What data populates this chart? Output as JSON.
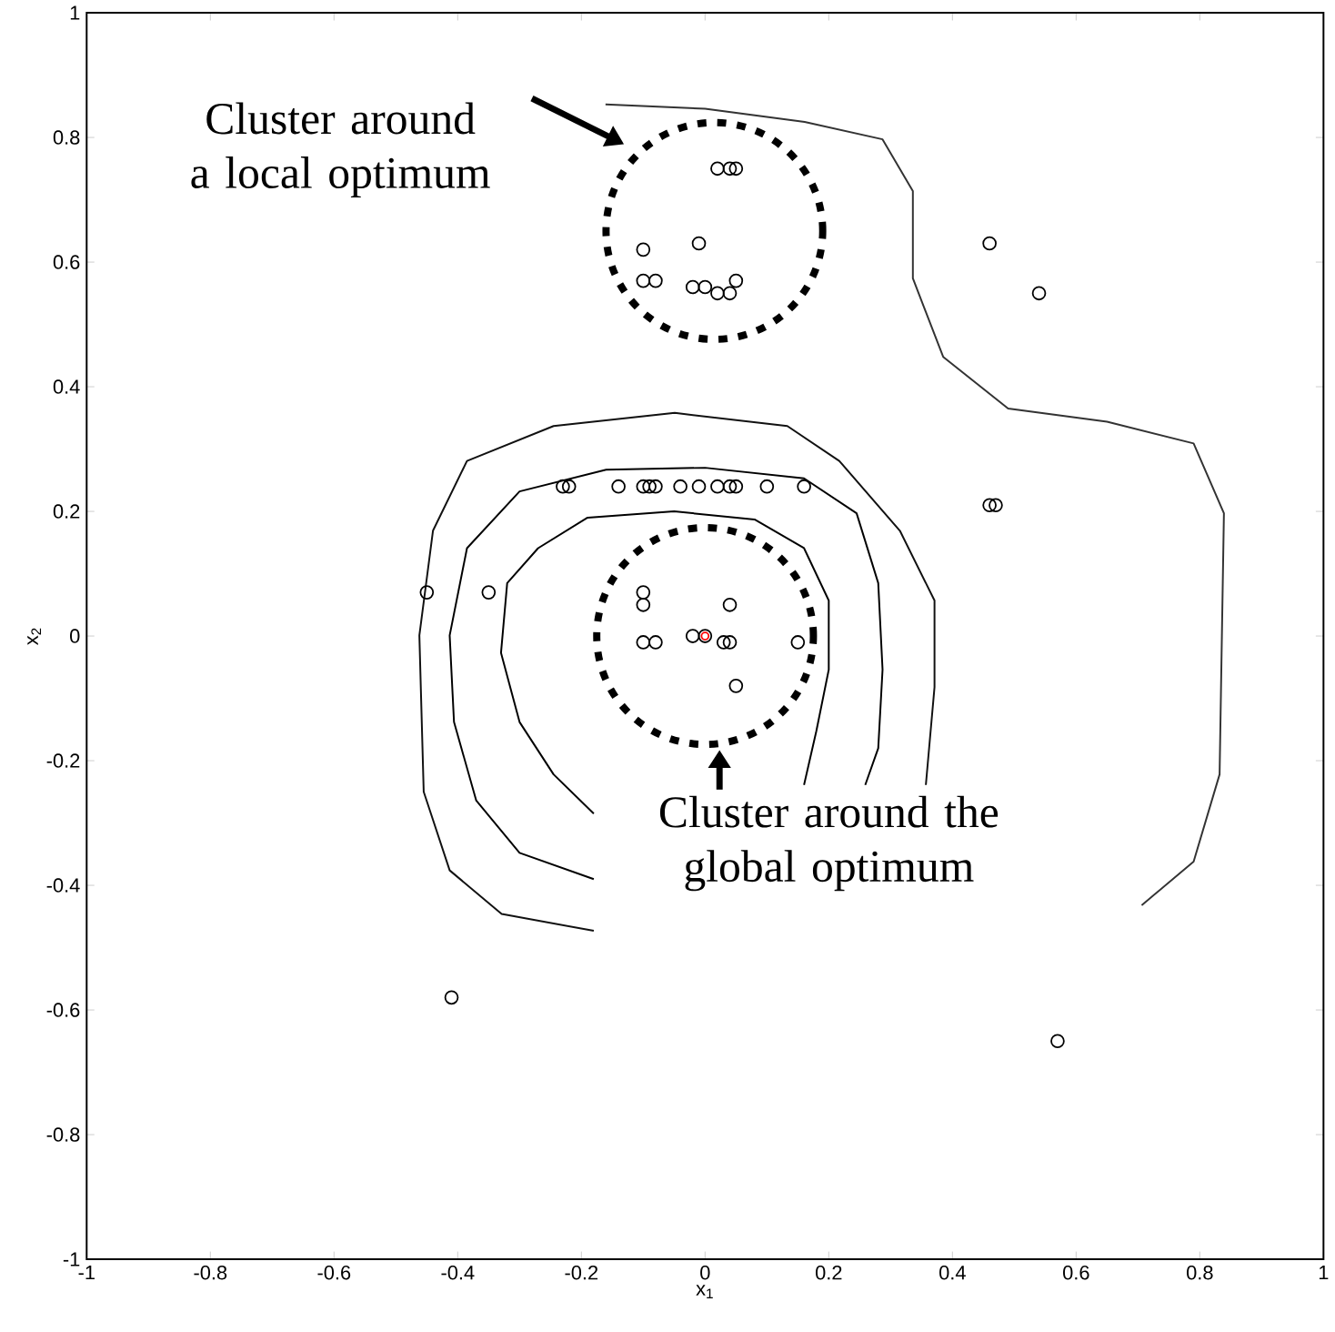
{
  "chart_data": {
    "type": "scatter",
    "xlabel": "x$_{1}$",
    "ylabel": "x$_{2}$",
    "xlim": [
      -1,
      1
    ],
    "ylim": [
      -1,
      1
    ],
    "xticks": [
      -1,
      -0.8,
      -0.6,
      -0.4,
      -0.2,
      0,
      0.2,
      0.4,
      0.6,
      0.8,
      1
    ],
    "yticks": [
      -1,
      -0.8,
      -0.6,
      -0.4,
      -0.2,
      0,
      0.2,
      0.4,
      0.6,
      0.8,
      1
    ],
    "marker": "circle",
    "series": [
      {
        "type": "line",
        "marker": "none",
        "color": "#000000",
        "x": [
          -0.18,
          -0.245,
          -0.3,
          -0.33,
          -0.32,
          -0.27,
          -0.19,
          -0.05,
          0.08,
          0.16,
          0.2,
          0.2,
          0.18,
          0.16
        ],
        "values": [
          -0.285,
          -0.222,
          -0.138,
          -0.027,
          0.085,
          0.141,
          0.19,
          0.2,
          0.187,
          0.141,
          0.057,
          -0.054,
          -0.152,
          -0.239
        ]
      },
      {
        "type": "line",
        "marker": "none",
        "color": "#000000",
        "x": [
          -0.18,
          -0.3,
          -0.37,
          -0.406,
          -0.413,
          -0.385,
          -0.3,
          -0.16,
          0,
          0.16,
          0.245,
          0.28,
          0.287,
          0.28,
          0.259
        ],
        "values": [
          -0.39,
          -0.348,
          -0.264,
          -0.138,
          0.001,
          0.141,
          0.232,
          0.267,
          0.27,
          0.253,
          0.197,
          0.085,
          -0.054,
          -0.18,
          -0.239
        ]
      },
      {
        "type": "line",
        "marker": "none",
        "color": "#111111",
        "x": [
          -0.18,
          -0.329,
          -0.413,
          -0.455,
          -0.462,
          -0.44,
          -0.385,
          -0.245,
          -0.049,
          0.133,
          0.217,
          0.315,
          0.371,
          0.371,
          0.357
        ],
        "values": [
          -0.473,
          -0.446,
          -0.376,
          -0.25,
          0.001,
          0.169,
          0.281,
          0.337,
          0.358,
          0.337,
          0.281,
          0.169,
          0.057,
          -0.082,
          -0.239
        ]
      },
      {
        "type": "line",
        "marker": "none",
        "color": "#333333",
        "x": [
          0.706,
          0.79,
          0.832,
          0.839,
          0.79,
          0.65,
          0.49,
          0.385,
          0.336,
          0.336,
          0.287,
          0.161,
          0,
          -0.161
        ],
        "values": [
          -0.432,
          -0.362,
          -0.222,
          0.197,
          0.309,
          0.344,
          0.365,
          0.448,
          0.574,
          0.714,
          0.797,
          0.825,
          0.846,
          0.853
        ]
      },
      {
        "color": "#000000",
        "x": [
          0.02,
          0.04,
          0.05,
          -0.1,
          -0.01,
          -0.1,
          -0.08,
          -0.02,
          0.0,
          0.02,
          0.04,
          0.05,
          0.46,
          0.54,
          -0.23,
          -0.22,
          -0.14,
          -0.1,
          -0.09,
          -0.08,
          -0.04,
          -0.01,
          0.02,
          0.04,
          0.05,
          0.1,
          0.16,
          0.46,
          0.47,
          -0.45,
          -0.35,
          -0.1,
          -0.1,
          0.04,
          -0.1,
          -0.08,
          -0.02,
          0.0,
          0.03,
          0.04,
          0.15,
          0.05,
          -0.41,
          0.57
        ],
        "values": [
          0.75,
          0.75,
          0.75,
          0.62,
          0.63,
          0.57,
          0.57,
          0.56,
          0.56,
          0.55,
          0.55,
          0.57,
          0.63,
          0.55,
          0.24,
          0.24,
          0.24,
          0.24,
          0.24,
          0.24,
          0.24,
          0.24,
          0.24,
          0.24,
          0.24,
          0.24,
          0.24,
          0.21,
          0.21,
          0.07,
          0.07,
          0.07,
          0.05,
          0.05,
          -0.01,
          -0.01,
          0.0,
          0.0,
          -0.01,
          -0.01,
          -0.01,
          -0.08,
          -0.58,
          -0.65
        ]
      },
      {
        "color": "#ff0000",
        "x": [
          0.0
        ],
        "values": [
          0.0
        ]
      }
    ],
    "annotations": [
      "Cluster around a local optimum",
      "Cluster around the global optimum"
    ]
  }
}
